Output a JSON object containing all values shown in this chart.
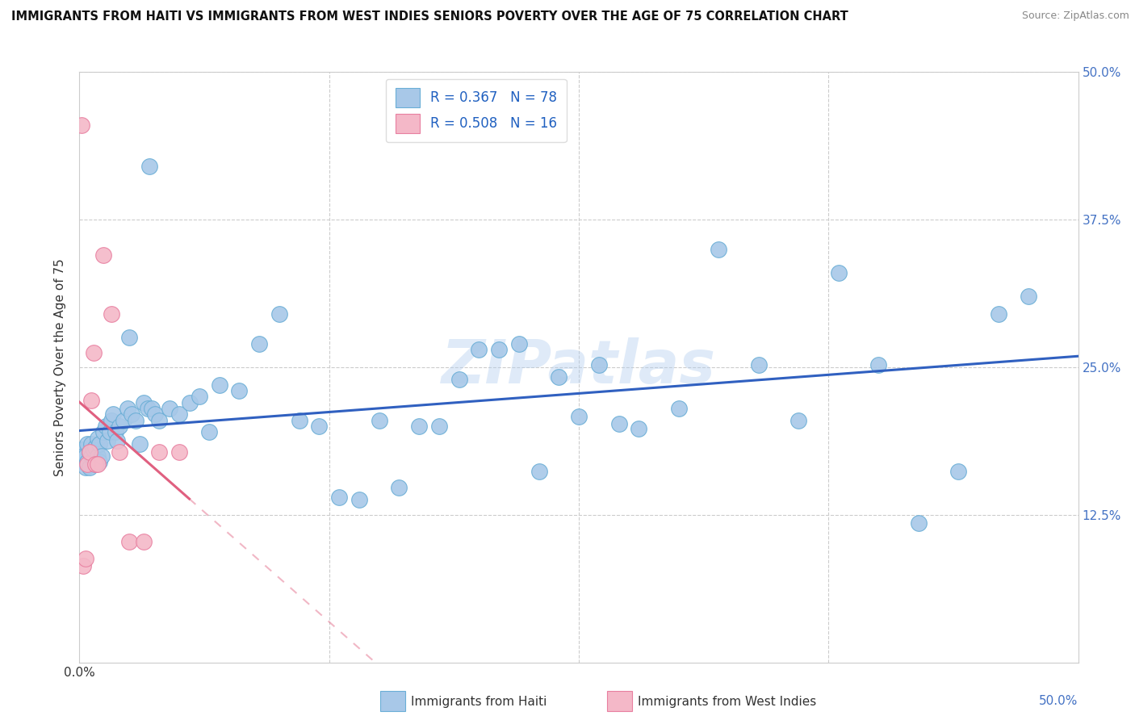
{
  "title": "IMMIGRANTS FROM HAITI VS IMMIGRANTS FROM WEST INDIES SENIORS POVERTY OVER THE AGE OF 75 CORRELATION CHART",
  "source": "Source: ZipAtlas.com",
  "ylabel": "Seniors Poverty Over the Age of 75",
  "xlim": [
    0,
    0.5
  ],
  "ylim": [
    0,
    0.5
  ],
  "haiti_color": "#a8c8e8",
  "haiti_edge": "#6aaed6",
  "west_color": "#f4b8c8",
  "west_edge": "#e87fa0",
  "line_haiti_color": "#3060c0",
  "line_west_color": "#e06080",
  "haiti_R": 0.367,
  "haiti_N": 78,
  "west_R": 0.508,
  "west_N": 16,
  "watermark": "ZIPatlas",
  "haiti_x": [
    0.001,
    0.002,
    0.002,
    0.003,
    0.003,
    0.004,
    0.004,
    0.005,
    0.005,
    0.006,
    0.006,
    0.007,
    0.007,
    0.008,
    0.008,
    0.009,
    0.009,
    0.01,
    0.01,
    0.011,
    0.012,
    0.013,
    0.014,
    0.015,
    0.016,
    0.017,
    0.018,
    0.019,
    0.02,
    0.022,
    0.024,
    0.026,
    0.028,
    0.03,
    0.032,
    0.034,
    0.036,
    0.038,
    0.04,
    0.045,
    0.05,
    0.055,
    0.06,
    0.065,
    0.07,
    0.08,
    0.09,
    0.1,
    0.11,
    0.12,
    0.13,
    0.14,
    0.15,
    0.16,
    0.17,
    0.18,
    0.19,
    0.2,
    0.21,
    0.22,
    0.23,
    0.24,
    0.25,
    0.26,
    0.27,
    0.28,
    0.3,
    0.32,
    0.34,
    0.36,
    0.38,
    0.4,
    0.42,
    0.44,
    0.46,
    0.475,
    0.025,
    0.035
  ],
  "haiti_y": [
    0.18,
    0.17,
    0.175,
    0.165,
    0.175,
    0.17,
    0.185,
    0.165,
    0.178,
    0.175,
    0.185,
    0.172,
    0.18,
    0.168,
    0.182,
    0.175,
    0.19,
    0.17,
    0.185,
    0.175,
    0.195,
    0.2,
    0.188,
    0.195,
    0.205,
    0.21,
    0.195,
    0.188,
    0.2,
    0.205,
    0.215,
    0.21,
    0.205,
    0.185,
    0.22,
    0.215,
    0.215,
    0.21,
    0.205,
    0.215,
    0.21,
    0.22,
    0.225,
    0.195,
    0.235,
    0.23,
    0.27,
    0.295,
    0.205,
    0.2,
    0.14,
    0.138,
    0.205,
    0.148,
    0.2,
    0.2,
    0.24,
    0.265,
    0.265,
    0.27,
    0.162,
    0.242,
    0.208,
    0.252,
    0.202,
    0.198,
    0.215,
    0.35,
    0.252,
    0.205,
    0.33,
    0.252,
    0.118,
    0.162,
    0.295,
    0.31,
    0.275,
    0.42
  ],
  "west_x": [
    0.001,
    0.002,
    0.003,
    0.004,
    0.005,
    0.006,
    0.007,
    0.008,
    0.009,
    0.012,
    0.016,
    0.02,
    0.025,
    0.032,
    0.04,
    0.05
  ],
  "west_y": [
    0.455,
    0.082,
    0.088,
    0.168,
    0.178,
    0.222,
    0.262,
    0.168,
    0.168,
    0.345,
    0.295,
    0.178,
    0.102,
    0.102,
    0.178,
    0.178
  ]
}
